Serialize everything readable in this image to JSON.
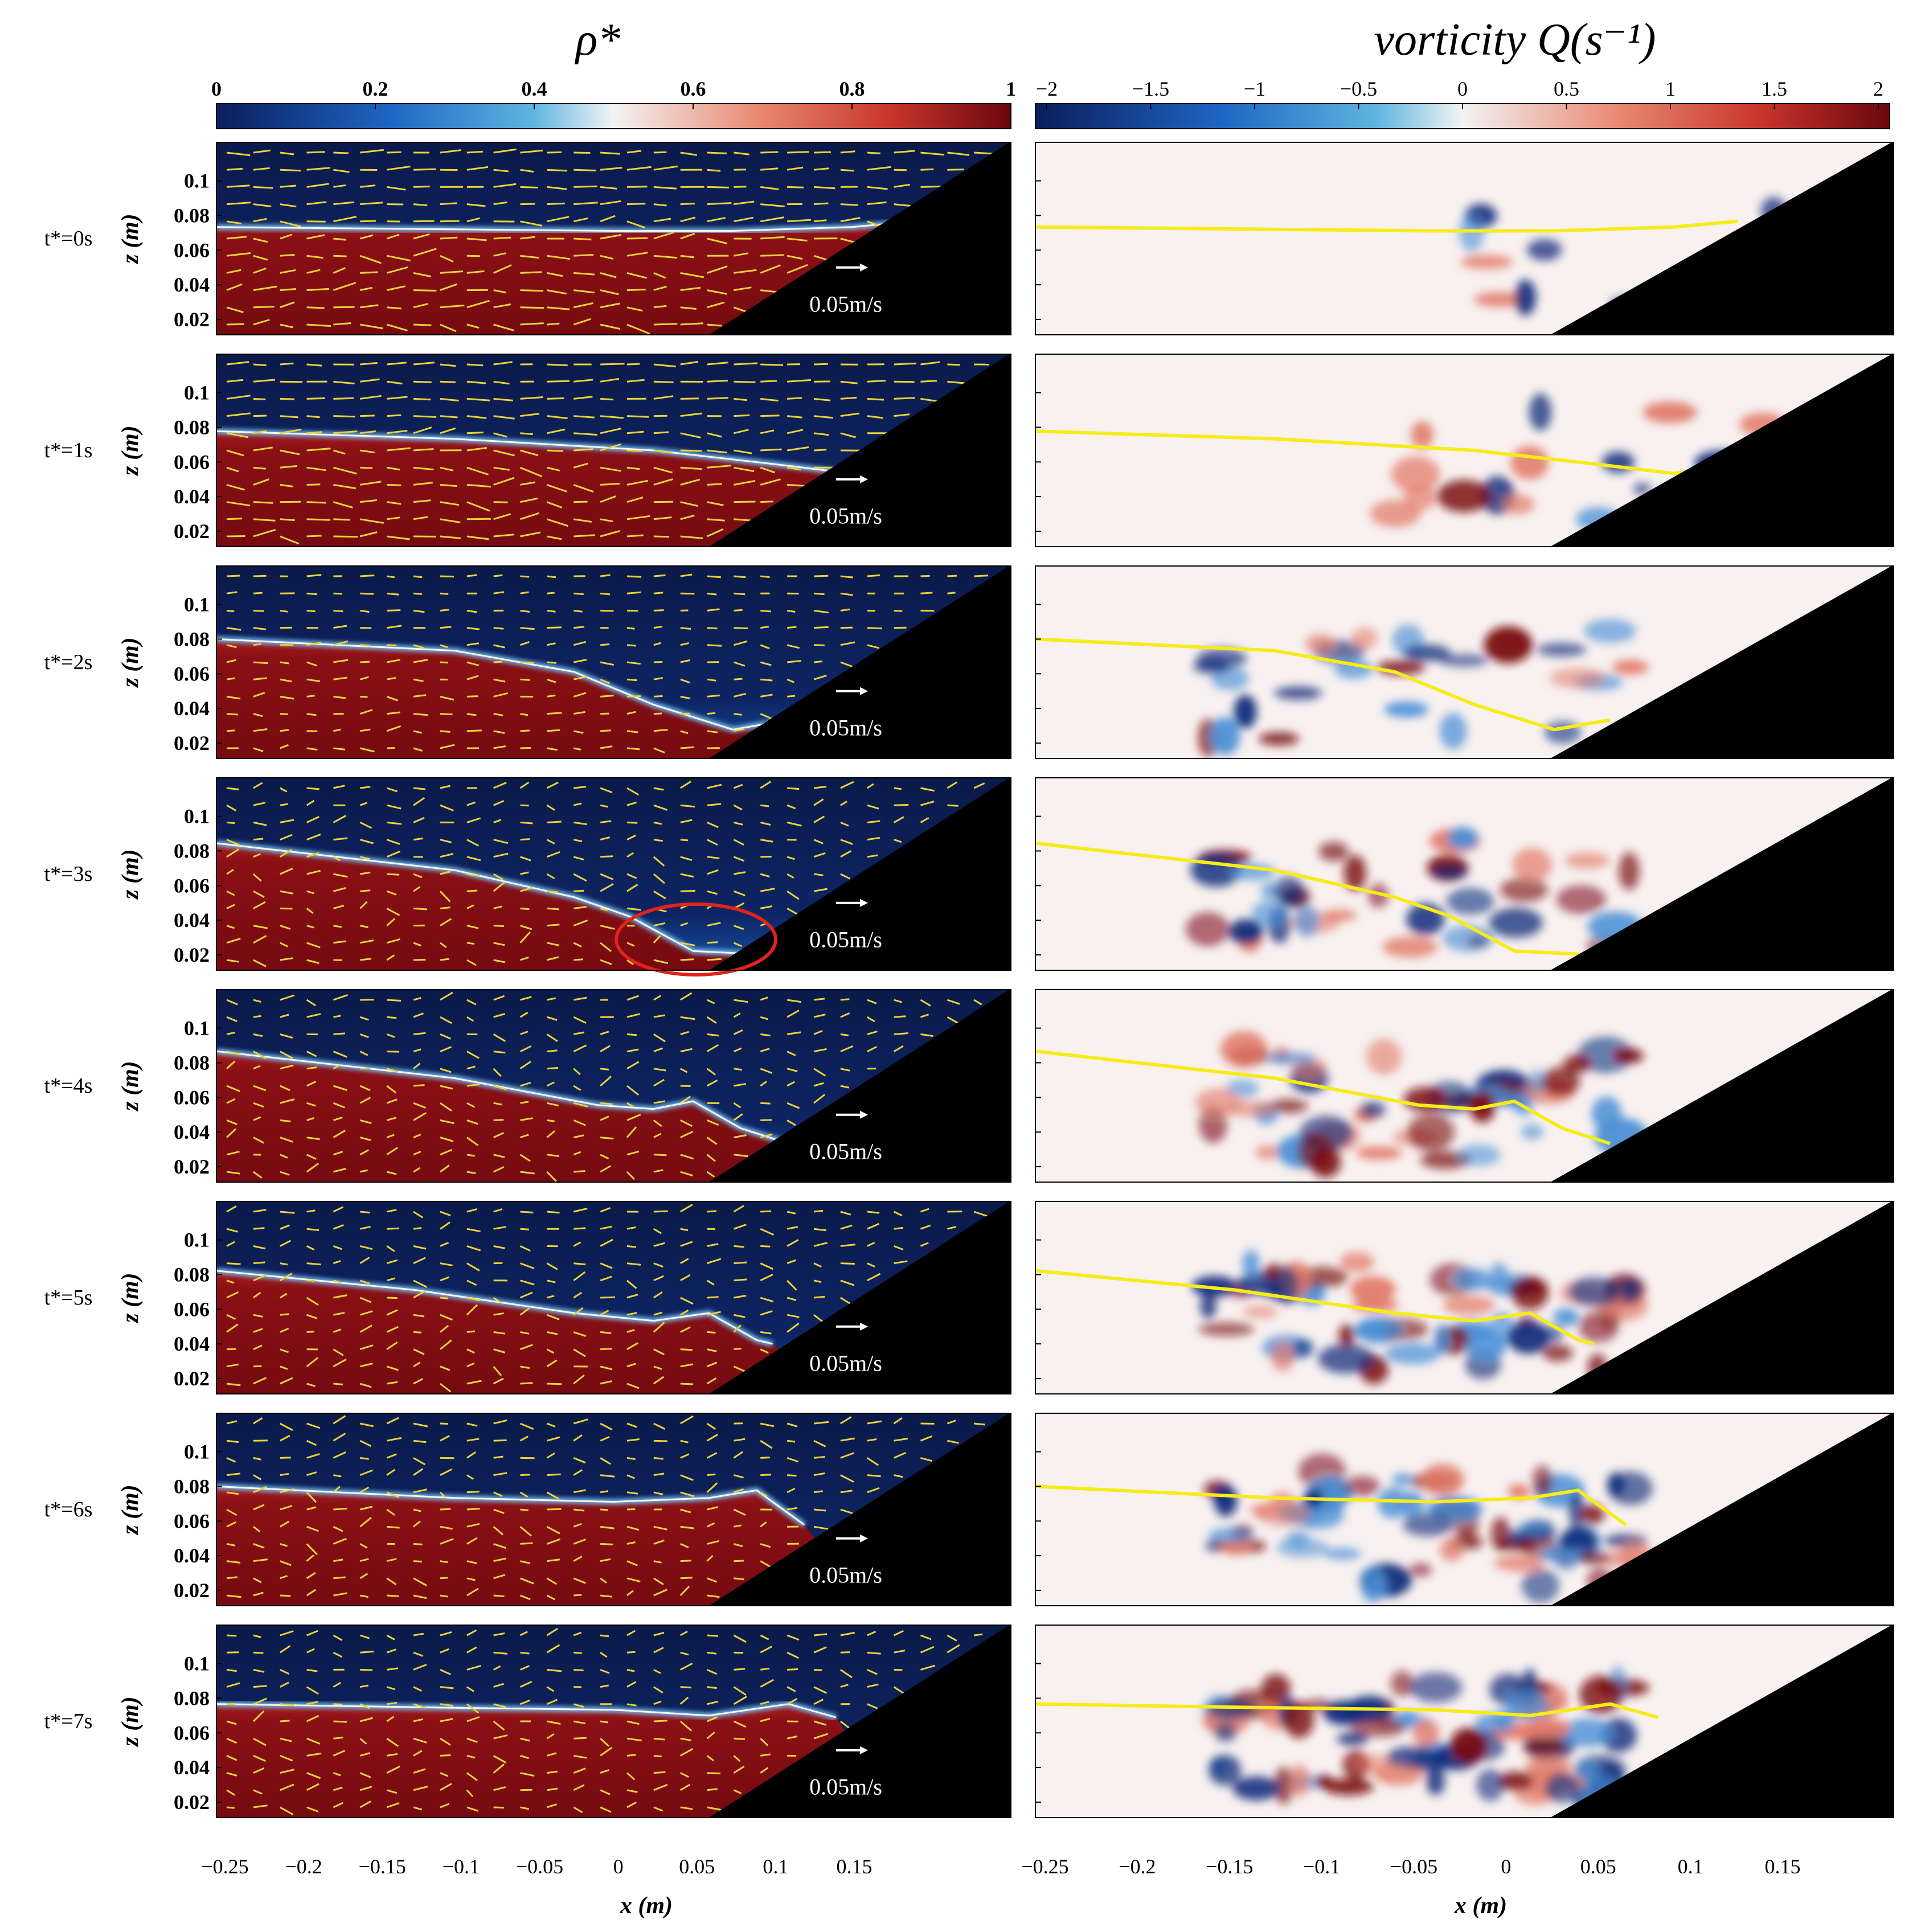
{
  "figure": {
    "left_colorbar": {
      "title": "ρ*",
      "ticks": [
        "0",
        "0.2",
        "0.4",
        "0.6",
        "0.8",
        "1"
      ],
      "colors": [
        "#0b1d5c",
        "#2f7fd1",
        "#f2f2f2",
        "#e06a55",
        "#7a0b10"
      ]
    },
    "right_colorbar": {
      "title": "vorticity Q(s⁻¹)",
      "ticks": [
        "−2",
        "−1.5",
        "−1",
        "−0.5",
        "0",
        "0.5",
        "1",
        "1.5",
        "2"
      ],
      "colors": [
        "#0b1d5c",
        "#2f7fd1",
        "#f2f2f2",
        "#e06a55",
        "#7a0b10"
      ]
    },
    "z_axis": {
      "label": "z (m)",
      "ticks": [
        "0.1",
        "0.08",
        "0.06",
        "0.04",
        "0.02"
      ]
    },
    "x_axis": {
      "label": "x (m)",
      "left_ticks": [
        "−0.25",
        "−0.2",
        "−0.15",
        "−0.1",
        "−0.05",
        "0",
        "0.05",
        "0.1",
        "0.15"
      ],
      "right_ticks": [
        "−0.25",
        "−0.2",
        "−0.15",
        "−0.1",
        "−0.05",
        "0",
        "0.05",
        "0.1",
        "0.15"
      ]
    },
    "velocity_label": "0.05m/s",
    "rows": [
      {
        "label": "t*=0s"
      },
      {
        "label": "t*=1s"
      },
      {
        "label": "t*=2s"
      },
      {
        "label": "t*=3s"
      },
      {
        "label": "t*=4s"
      },
      {
        "label": "t*=5s"
      },
      {
        "label": "t*=6s"
      },
      {
        "label": "t*=7s"
      }
    ],
    "colors": {
      "heavy_fluid": "#7d0c12",
      "light_fluid": "#0c1b4d",
      "interface": "#6fb8e8",
      "vectors": "#e8d23a",
      "interface_line": "#f5ec1a",
      "slope": "#000000",
      "highlight": "#e0231b"
    }
  }
}
